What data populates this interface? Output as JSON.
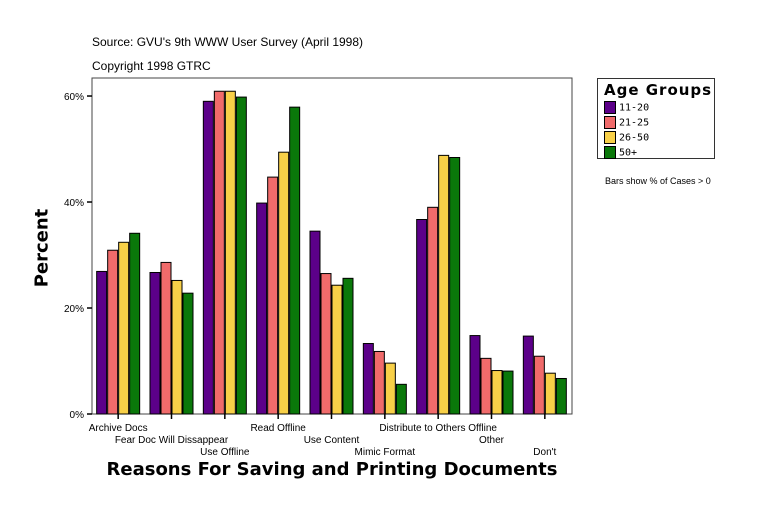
{
  "source": "Source: GVU's 9th WWW User Survey (April 1998)",
  "copyright": "Copyright 1998 GTRC",
  "note": "Bars show % of Cases > 0",
  "chart_data": {
    "type": "bar",
    "xlabel": "Reasons For Saving and Printing Documents",
    "ylabel": "Percent",
    "ylim": [
      0,
      63.4
    ],
    "yticks": [
      "0%",
      "20%",
      "40%",
      "60%"
    ],
    "ytick_values": [
      0,
      20,
      40,
      60
    ],
    "grid": false,
    "legend": {
      "title": "Age Groups",
      "placement": "right"
    },
    "categories": [
      "Archive Docs",
      "Fear Doc Will Dissappear",
      "Use Offline",
      "Read Offline",
      "Use Content",
      "Mimic Format",
      "Distribute to Others Offline",
      "Other",
      "Don't"
    ],
    "series": [
      {
        "name": "11-20",
        "color": "#5c0089",
        "values": [
          26.9,
          26.7,
          59.0,
          39.8,
          34.5,
          13.3,
          36.7,
          14.8,
          14.7
        ]
      },
      {
        "name": "21-25",
        "color": "#f06b6b",
        "values": [
          30.9,
          28.6,
          60.9,
          44.7,
          26.5,
          11.8,
          39.0,
          10.5,
          10.9
        ]
      },
      {
        "name": "26-50",
        "color": "#f8d048",
        "values": [
          32.4,
          25.2,
          60.9,
          49.4,
          24.3,
          9.6,
          48.8,
          8.2,
          7.7
        ]
      },
      {
        "name": "50+",
        "color": "#0a780a",
        "values": [
          34.1,
          22.8,
          59.8,
          57.9,
          25.6,
          5.6,
          48.4,
          8.1,
          6.7
        ]
      }
    ]
  }
}
